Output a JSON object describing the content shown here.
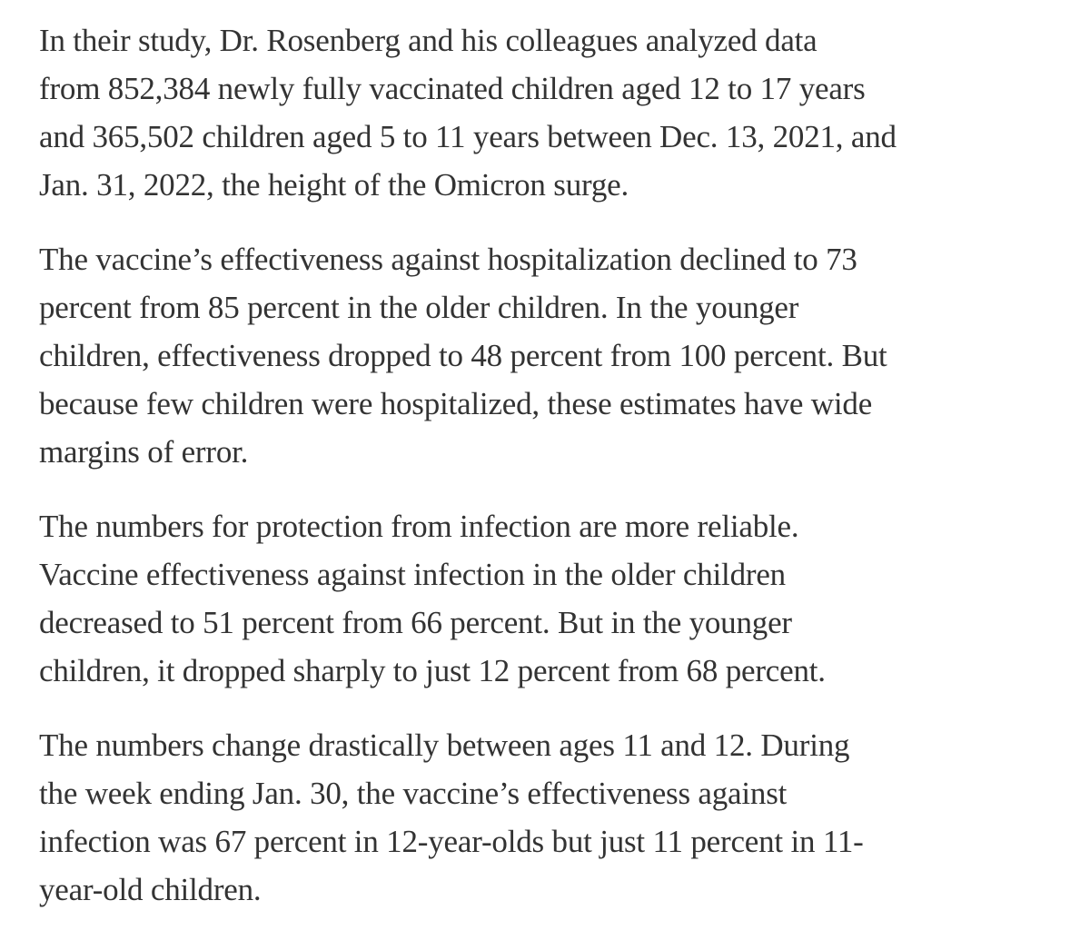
{
  "article": {
    "paragraphs": [
      {
        "lines": [
          "In their study, Dr. Rosenberg and his colleagues analyzed data",
          "from 852,384 newly fully vaccinated children aged 12 to 17 years",
          "and 365,502 children aged 5 to 11 years between Dec. 13, 2021, and",
          "Jan. 31, 2022, the height of the Omicron surge."
        ]
      },
      {
        "lines": [
          "The vaccine’s effectiveness against hospitalization declined to 73",
          "percent from 85 percent in the older children. In the younger",
          "children, effectiveness dropped to 48 percent from 100 percent. But",
          "because few children were hospitalized, these estimates have wide",
          "margins of error."
        ]
      },
      {
        "lines": [
          "The numbers for protection from infection are more reliable.",
          "Vaccine effectiveness against infection in the older children",
          "decreased to 51 percent from 66 percent. But in the younger",
          "children, it dropped sharply to just 12 percent from 68 percent."
        ]
      },
      {
        "lines": [
          "The numbers change drastically between ages 11 and 12. During",
          "the week ending Jan. 30, the vaccine’s effectiveness against",
          "infection was 67 percent in 12-year-olds but just 11 percent in 11-",
          "year-old children."
        ]
      }
    ]
  }
}
